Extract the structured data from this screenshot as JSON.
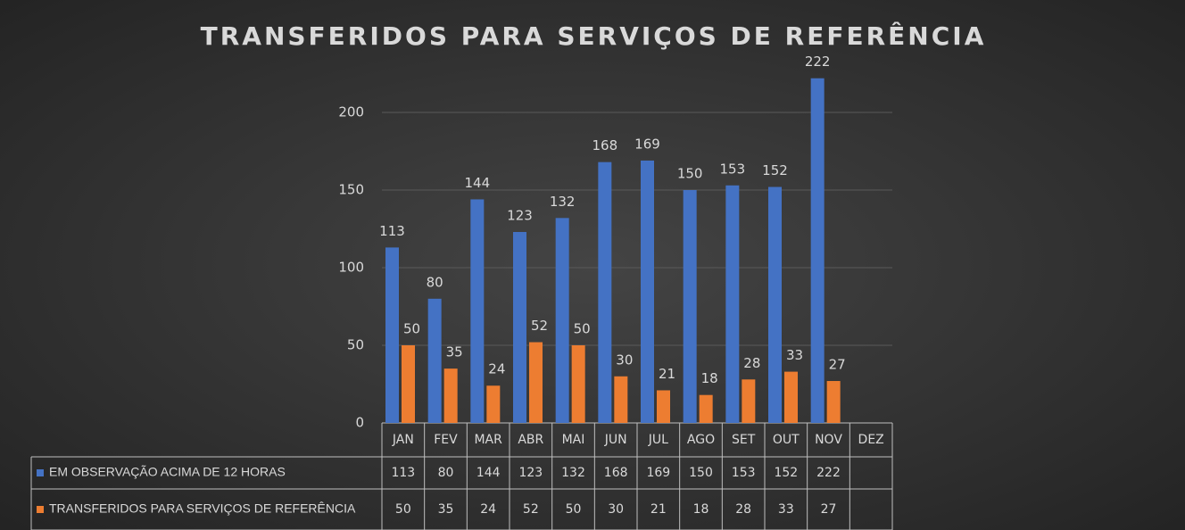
{
  "chart_data": {
    "type": "bar",
    "title": "TRANSFERIDOS PARA SERVIÇOS DE REFERÊNCIA",
    "categories": [
      "JAN",
      "FEV",
      "MAR",
      "ABR",
      "MAI",
      "JUN",
      "JUL",
      "AGO",
      "SET",
      "OUT",
      "NOV",
      "DEZ"
    ],
    "series": [
      {
        "name": "EM OBSERVAÇÃO ACIMA DE 12 HORAS",
        "color": "#4472c4",
        "values": [
          113,
          80,
          144,
          123,
          132,
          168,
          169,
          150,
          153,
          152,
          222,
          null
        ]
      },
      {
        "name": "TRANSFERIDOS PARA SERVIÇOS DE REFERÊNCIA",
        "color": "#ed7d31",
        "values": [
          50,
          35,
          24,
          52,
          50,
          30,
          21,
          18,
          28,
          33,
          27,
          null
        ]
      }
    ],
    "ylim": [
      0,
      250
    ],
    "yticks": [
      0,
      50,
      100,
      150,
      200
    ],
    "grid": true
  }
}
